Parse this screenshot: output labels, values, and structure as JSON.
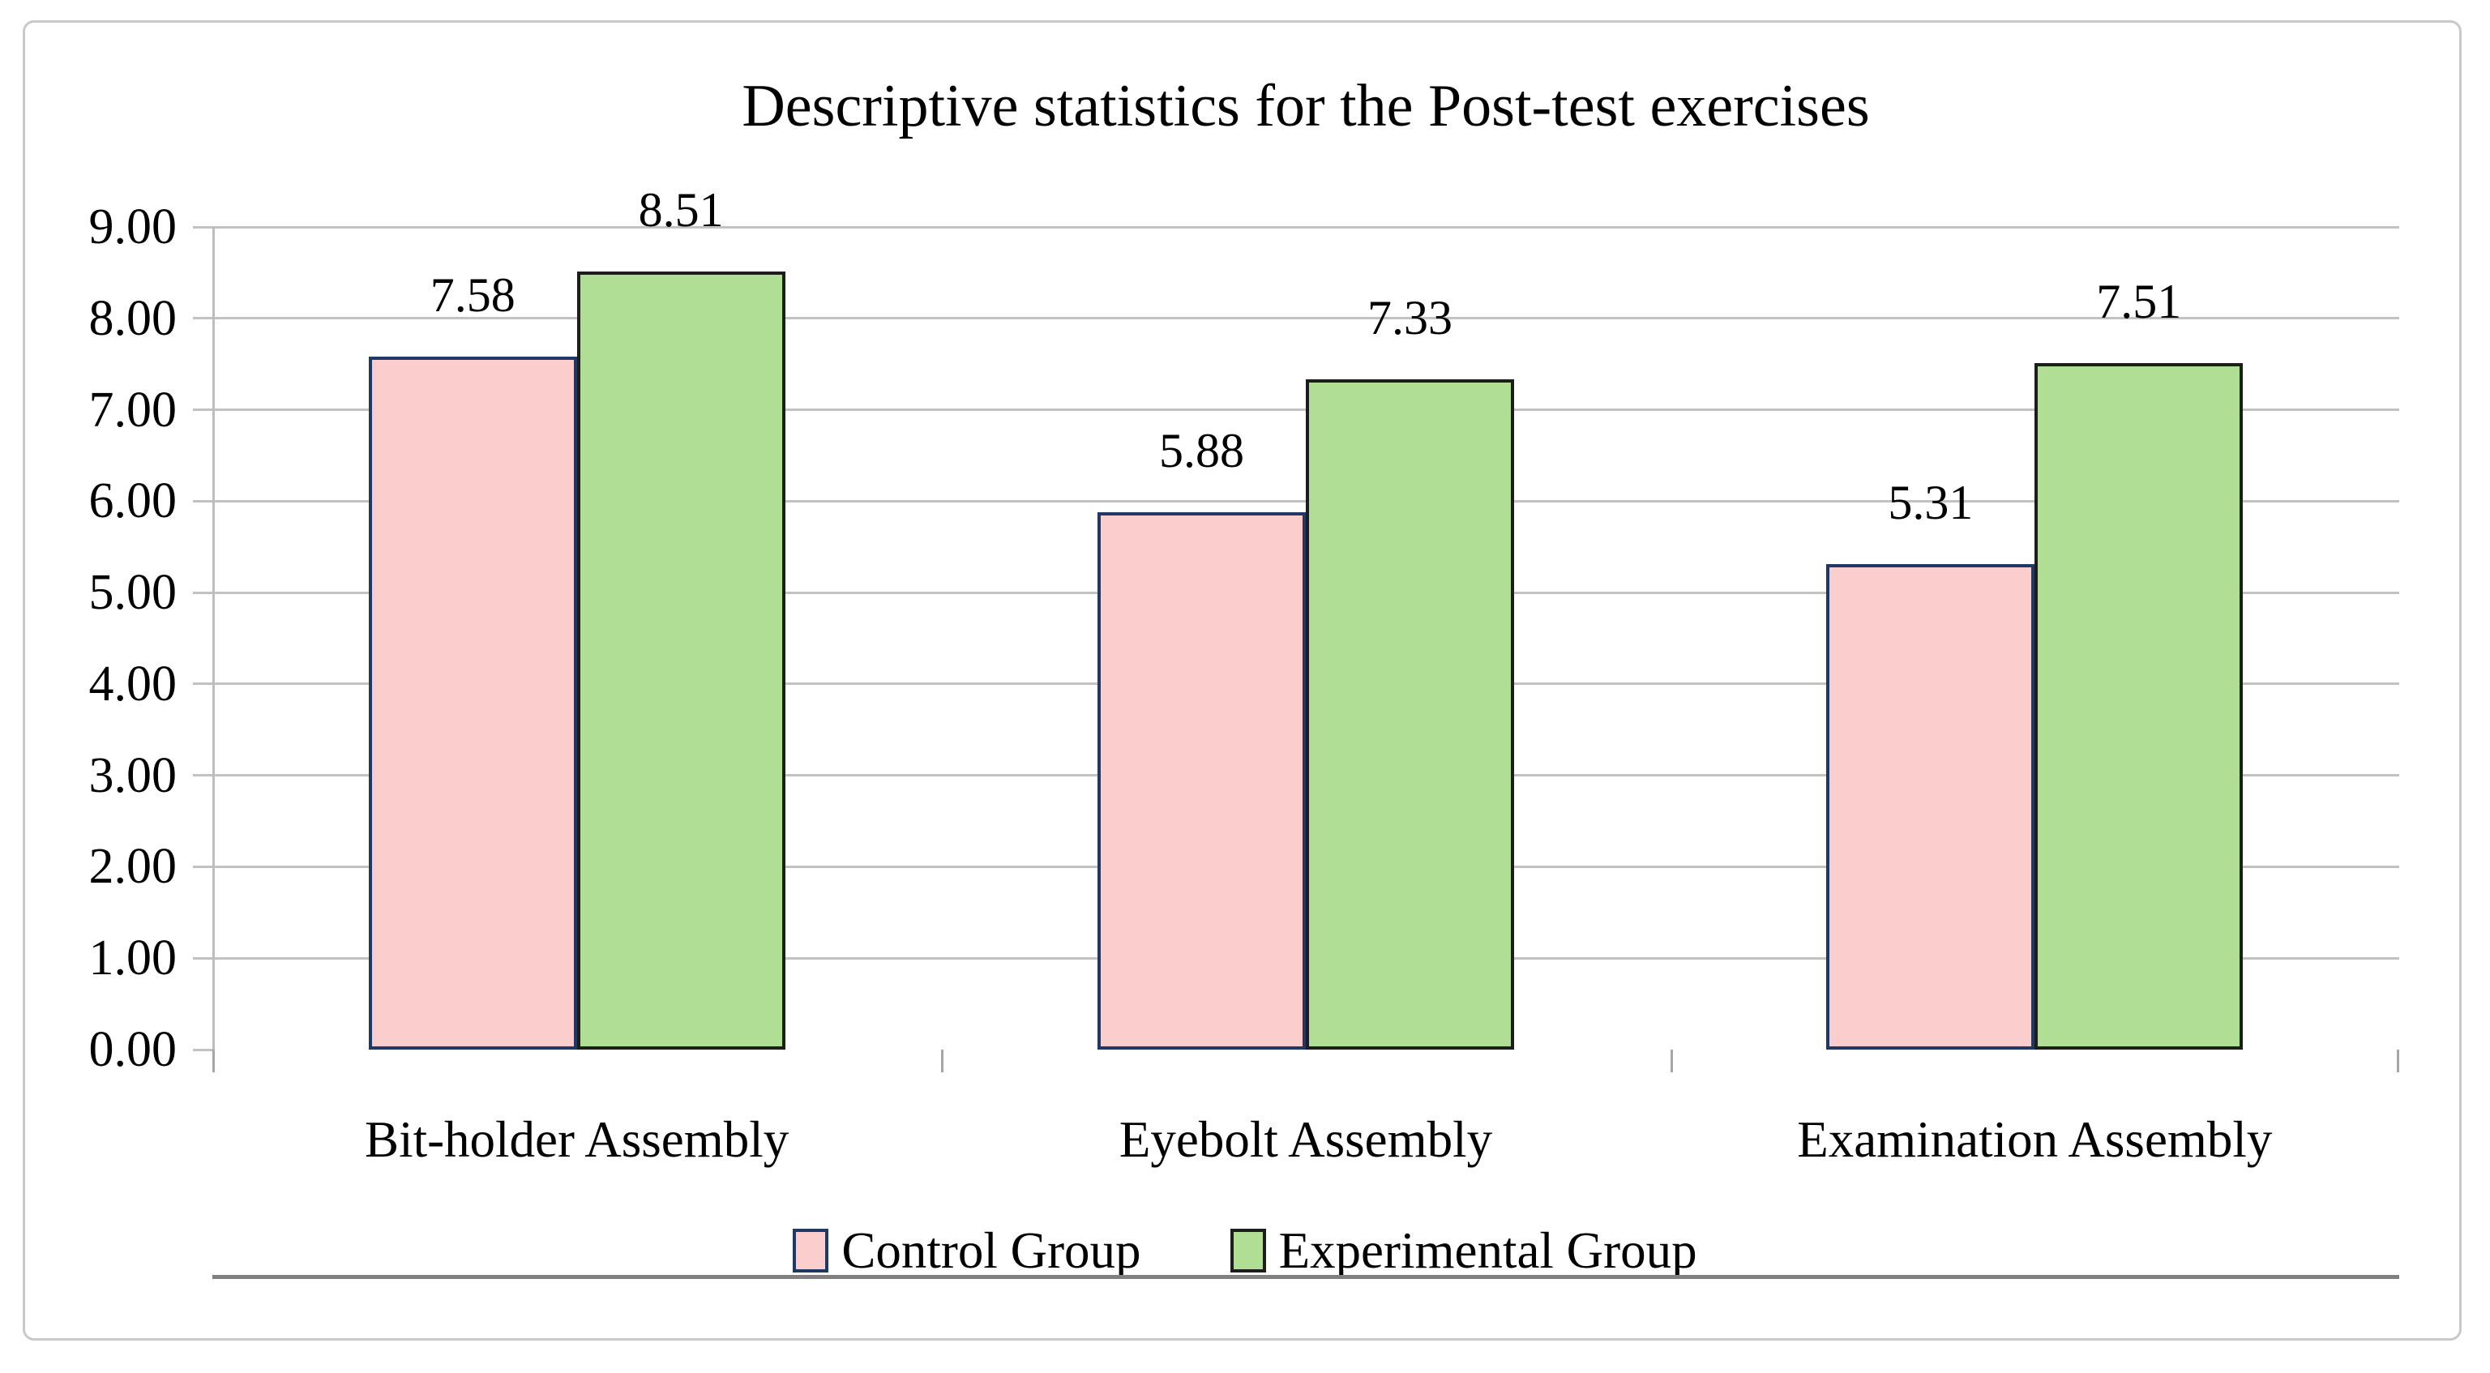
{
  "chart_data": {
    "type": "bar",
    "title": "Descriptive statistics for the Post-test exercises",
    "categories": [
      "Bit-holder Assembly",
      "Eyebolt Assembly",
      "Examination Assembly"
    ],
    "series": [
      {
        "name": "Control Group",
        "values": [
          7.58,
          5.88,
          5.31
        ],
        "fill": "#FBCDCD",
        "border": "#1F3864"
      },
      {
        "name": "Experimental Group",
        "values": [
          8.51,
          7.33,
          7.51
        ],
        "fill": "#AFDE94",
        "border": "#1D1D1B"
      }
    ],
    "ylim": [
      0,
      9
    ],
    "ytick_step": 1,
    "ytick_labels": [
      "0.00",
      "1.00",
      "2.00",
      "3.00",
      "4.00",
      "5.00",
      "6.00",
      "7.00",
      "8.00",
      "9.00"
    ],
    "data_labels": [
      [
        "7.58",
        "5.88",
        "5.31"
      ],
      [
        "8.51",
        "7.33",
        "7.51"
      ]
    ],
    "grid": true,
    "legend_position": "bottom",
    "gap_ratio": 1.5,
    "colors": {
      "gridline": "#C2C2C2",
      "axis_baseline": "#808080",
      "axis_line": "#BDBDBD",
      "frame_border": "#C9C9C9",
      "text": "#000000",
      "background": "#FFFFFF"
    }
  }
}
